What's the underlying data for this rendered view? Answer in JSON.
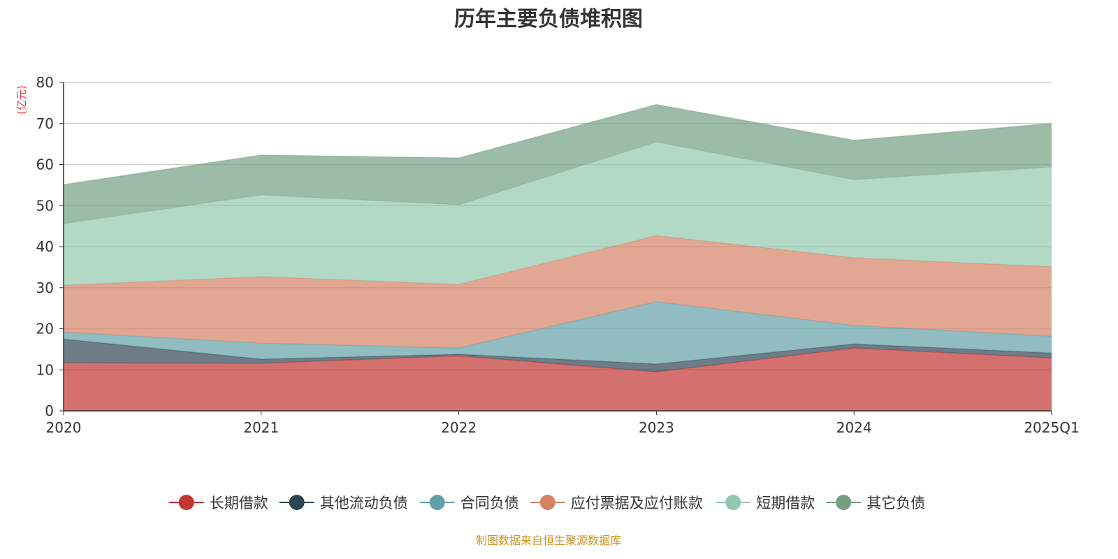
{
  "chart_data": {
    "type": "area",
    "stacked": true,
    "title": "历年主要负债堆积图",
    "ylabel": "(亿元)",
    "xlabel": "",
    "ylim": [
      0,
      80
    ],
    "yticks": [
      0,
      10,
      20,
      30,
      40,
      50,
      60,
      70,
      80
    ],
    "grid": true,
    "legend_position": "bottom",
    "categories": [
      "2020",
      "2021",
      "2022",
      "2023",
      "2024",
      "2025Q1"
    ],
    "series": [
      {
        "name": "长期借款",
        "color": "#c23531",
        "values": [
          11.7,
          11.6,
          13.4,
          9.5,
          15.3,
          12.9
        ]
      },
      {
        "name": "其他流动负债",
        "color": "#2f4554",
        "values": [
          5.8,
          1.0,
          0.4,
          1.9,
          1.0,
          1.2
        ]
      },
      {
        "name": "合同负债",
        "color": "#61a0a8",
        "values": [
          1.7,
          3.9,
          1.5,
          15.2,
          4.5,
          4.1
        ]
      },
      {
        "name": "应付票据及应付账款",
        "color": "#d48265",
        "values": [
          11.4,
          16.2,
          15.5,
          16.1,
          16.5,
          16.9
        ]
      },
      {
        "name": "短期借款",
        "color": "#91c7ae",
        "values": [
          15.0,
          19.9,
          19.4,
          22.8,
          19.0,
          24.3
        ]
      },
      {
        "name": "其它负债",
        "color": "#749f83",
        "values": [
          9.5,
          9.7,
          11.4,
          9.1,
          9.6,
          10.6
        ]
      }
    ],
    "footer": "制图数据来自恒生聚源数据库"
  }
}
